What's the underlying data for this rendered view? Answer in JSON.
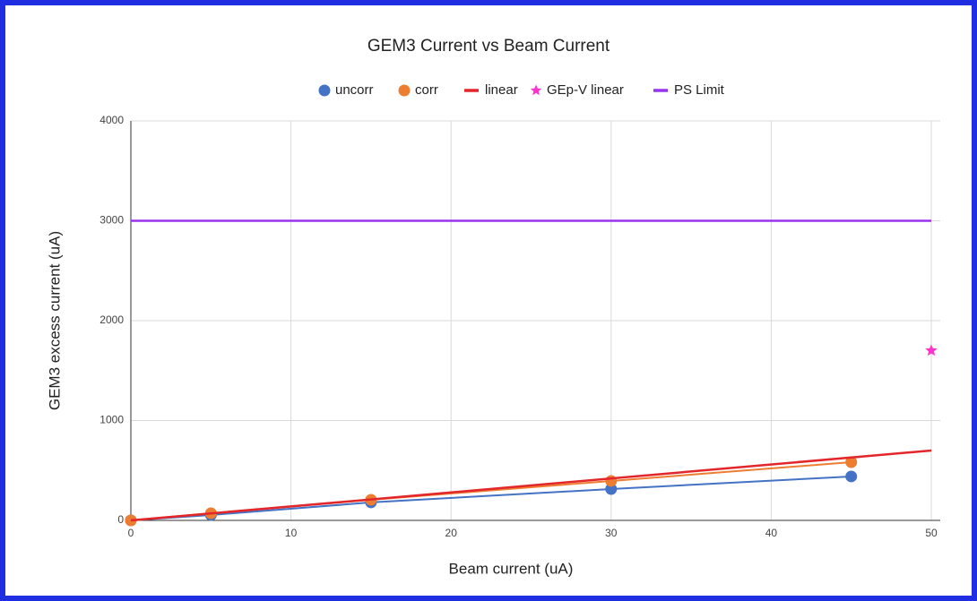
{
  "chart_data": {
    "type": "scatter",
    "title": "GEM3 Current vs Beam Current",
    "x_label": "Beam current (uA)",
    "y_label": "GEM3 excess current (uA)",
    "xlim": [
      0,
      50
    ],
    "xticks": [
      0,
      10,
      20,
      30,
      40,
      50
    ],
    "ylim": [
      0,
      4000
    ],
    "yticks": [
      0,
      1000,
      2000,
      3000,
      4000
    ],
    "grid": true,
    "legend": "top",
    "series": [
      {
        "name": "uncorr",
        "color": "#4472c4",
        "marker": "circle",
        "line": true,
        "x": [
          0,
          5,
          15,
          30,
          45
        ],
        "values": [
          0,
          54,
          180,
          314,
          440
        ]
      },
      {
        "name": "corr",
        "color": "#ed7d31",
        "marker": "circle",
        "line": true,
        "x": [
          0,
          5,
          15,
          30,
          45
        ],
        "values": [
          0,
          72,
          206,
          395,
          583
        ]
      },
      {
        "name": "linear",
        "color": "#e3262a",
        "marker": "none",
        "line": true,
        "x": [
          0,
          50
        ],
        "values": [
          0,
          700
        ]
      },
      {
        "name": "GEp-V linear",
        "color": "#ff33cc",
        "marker": "star",
        "line": false,
        "x": [
          50
        ],
        "values": [
          1700
        ]
      },
      {
        "name": "PS Limit",
        "color": "#9933ee",
        "marker": "none",
        "line": true,
        "x": [
          0,
          50
        ],
        "values": [
          3000,
          3000
        ]
      }
    ]
  }
}
